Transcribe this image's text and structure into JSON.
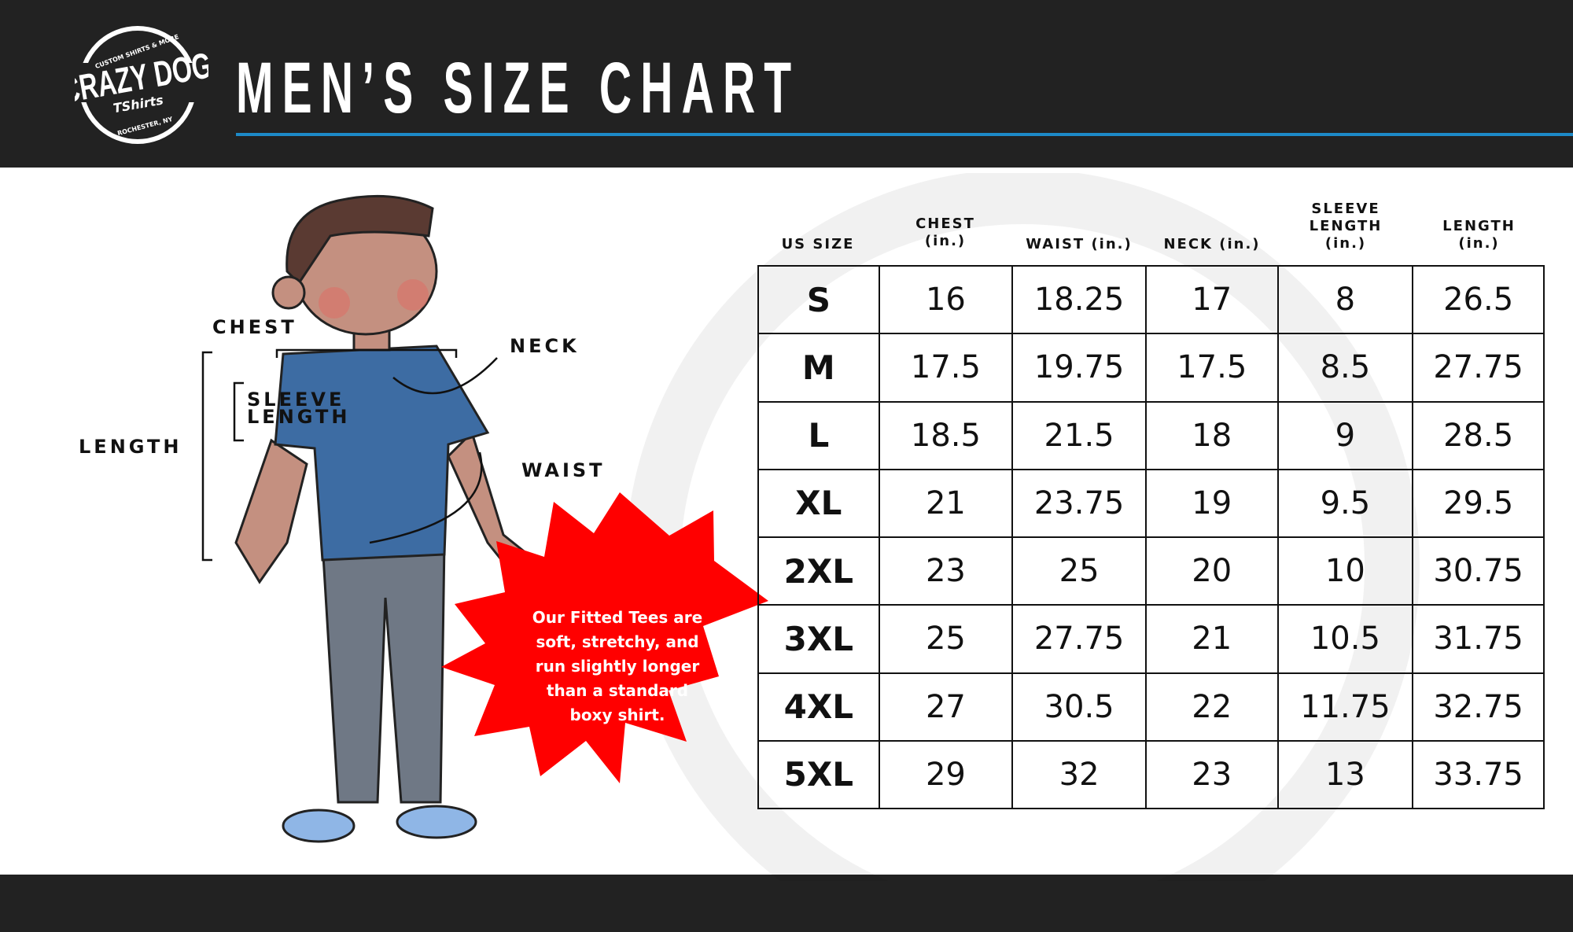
{
  "header": {
    "title": "MEN’S SIZE CHART",
    "logo_text": [
      "CUSTOM SHIRTS & MORE",
      "CRAZY DOG",
      "TShirts",
      "ROCHESTER, NY"
    ],
    "accent_color": "#1d8ac8"
  },
  "diagram": {
    "labels": {
      "chest": "CHEST",
      "neck": "NECK",
      "sleeve": "SLEEVE",
      "sleeve2": "LENGTH",
      "length": "LENGTH",
      "waist": "WAIST"
    }
  },
  "badge": {
    "lines": [
      "Our Fitted Tees are",
      "soft, stretchy, and",
      "run slightly longer",
      "than a standard",
      "boxy shirt."
    ],
    "color": "#ff0000"
  },
  "table": {
    "headers": [
      [
        "US SIZE"
      ],
      [
        "CHEST",
        "(in.)"
      ],
      [
        "WAIST (in.)"
      ],
      [
        "NECK (in.)"
      ],
      [
        "SLEEVE",
        "LENGTH",
        "(in.)"
      ],
      [
        "LENGTH",
        "(in.)"
      ]
    ],
    "rows": [
      [
        "S",
        "16",
        "18.25",
        "17",
        "8",
        "26.5"
      ],
      [
        "M",
        "17.5",
        "19.75",
        "17.5",
        "8.5",
        "27.75"
      ],
      [
        "L",
        "18.5",
        "21.5",
        "18",
        "9",
        "28.5"
      ],
      [
        "XL",
        "21",
        "23.75",
        "19",
        "9.5",
        "29.5"
      ],
      [
        "2XL",
        "23",
        "25",
        "20",
        "10",
        "30.75"
      ],
      [
        "3XL",
        "25",
        "27.75",
        "21",
        "10.5",
        "31.75"
      ],
      [
        "4XL",
        "27",
        "30.5",
        "22",
        "11.75",
        "32.75"
      ],
      [
        "5XL",
        "29",
        "32",
        "23",
        "13",
        "33.75"
      ]
    ]
  }
}
